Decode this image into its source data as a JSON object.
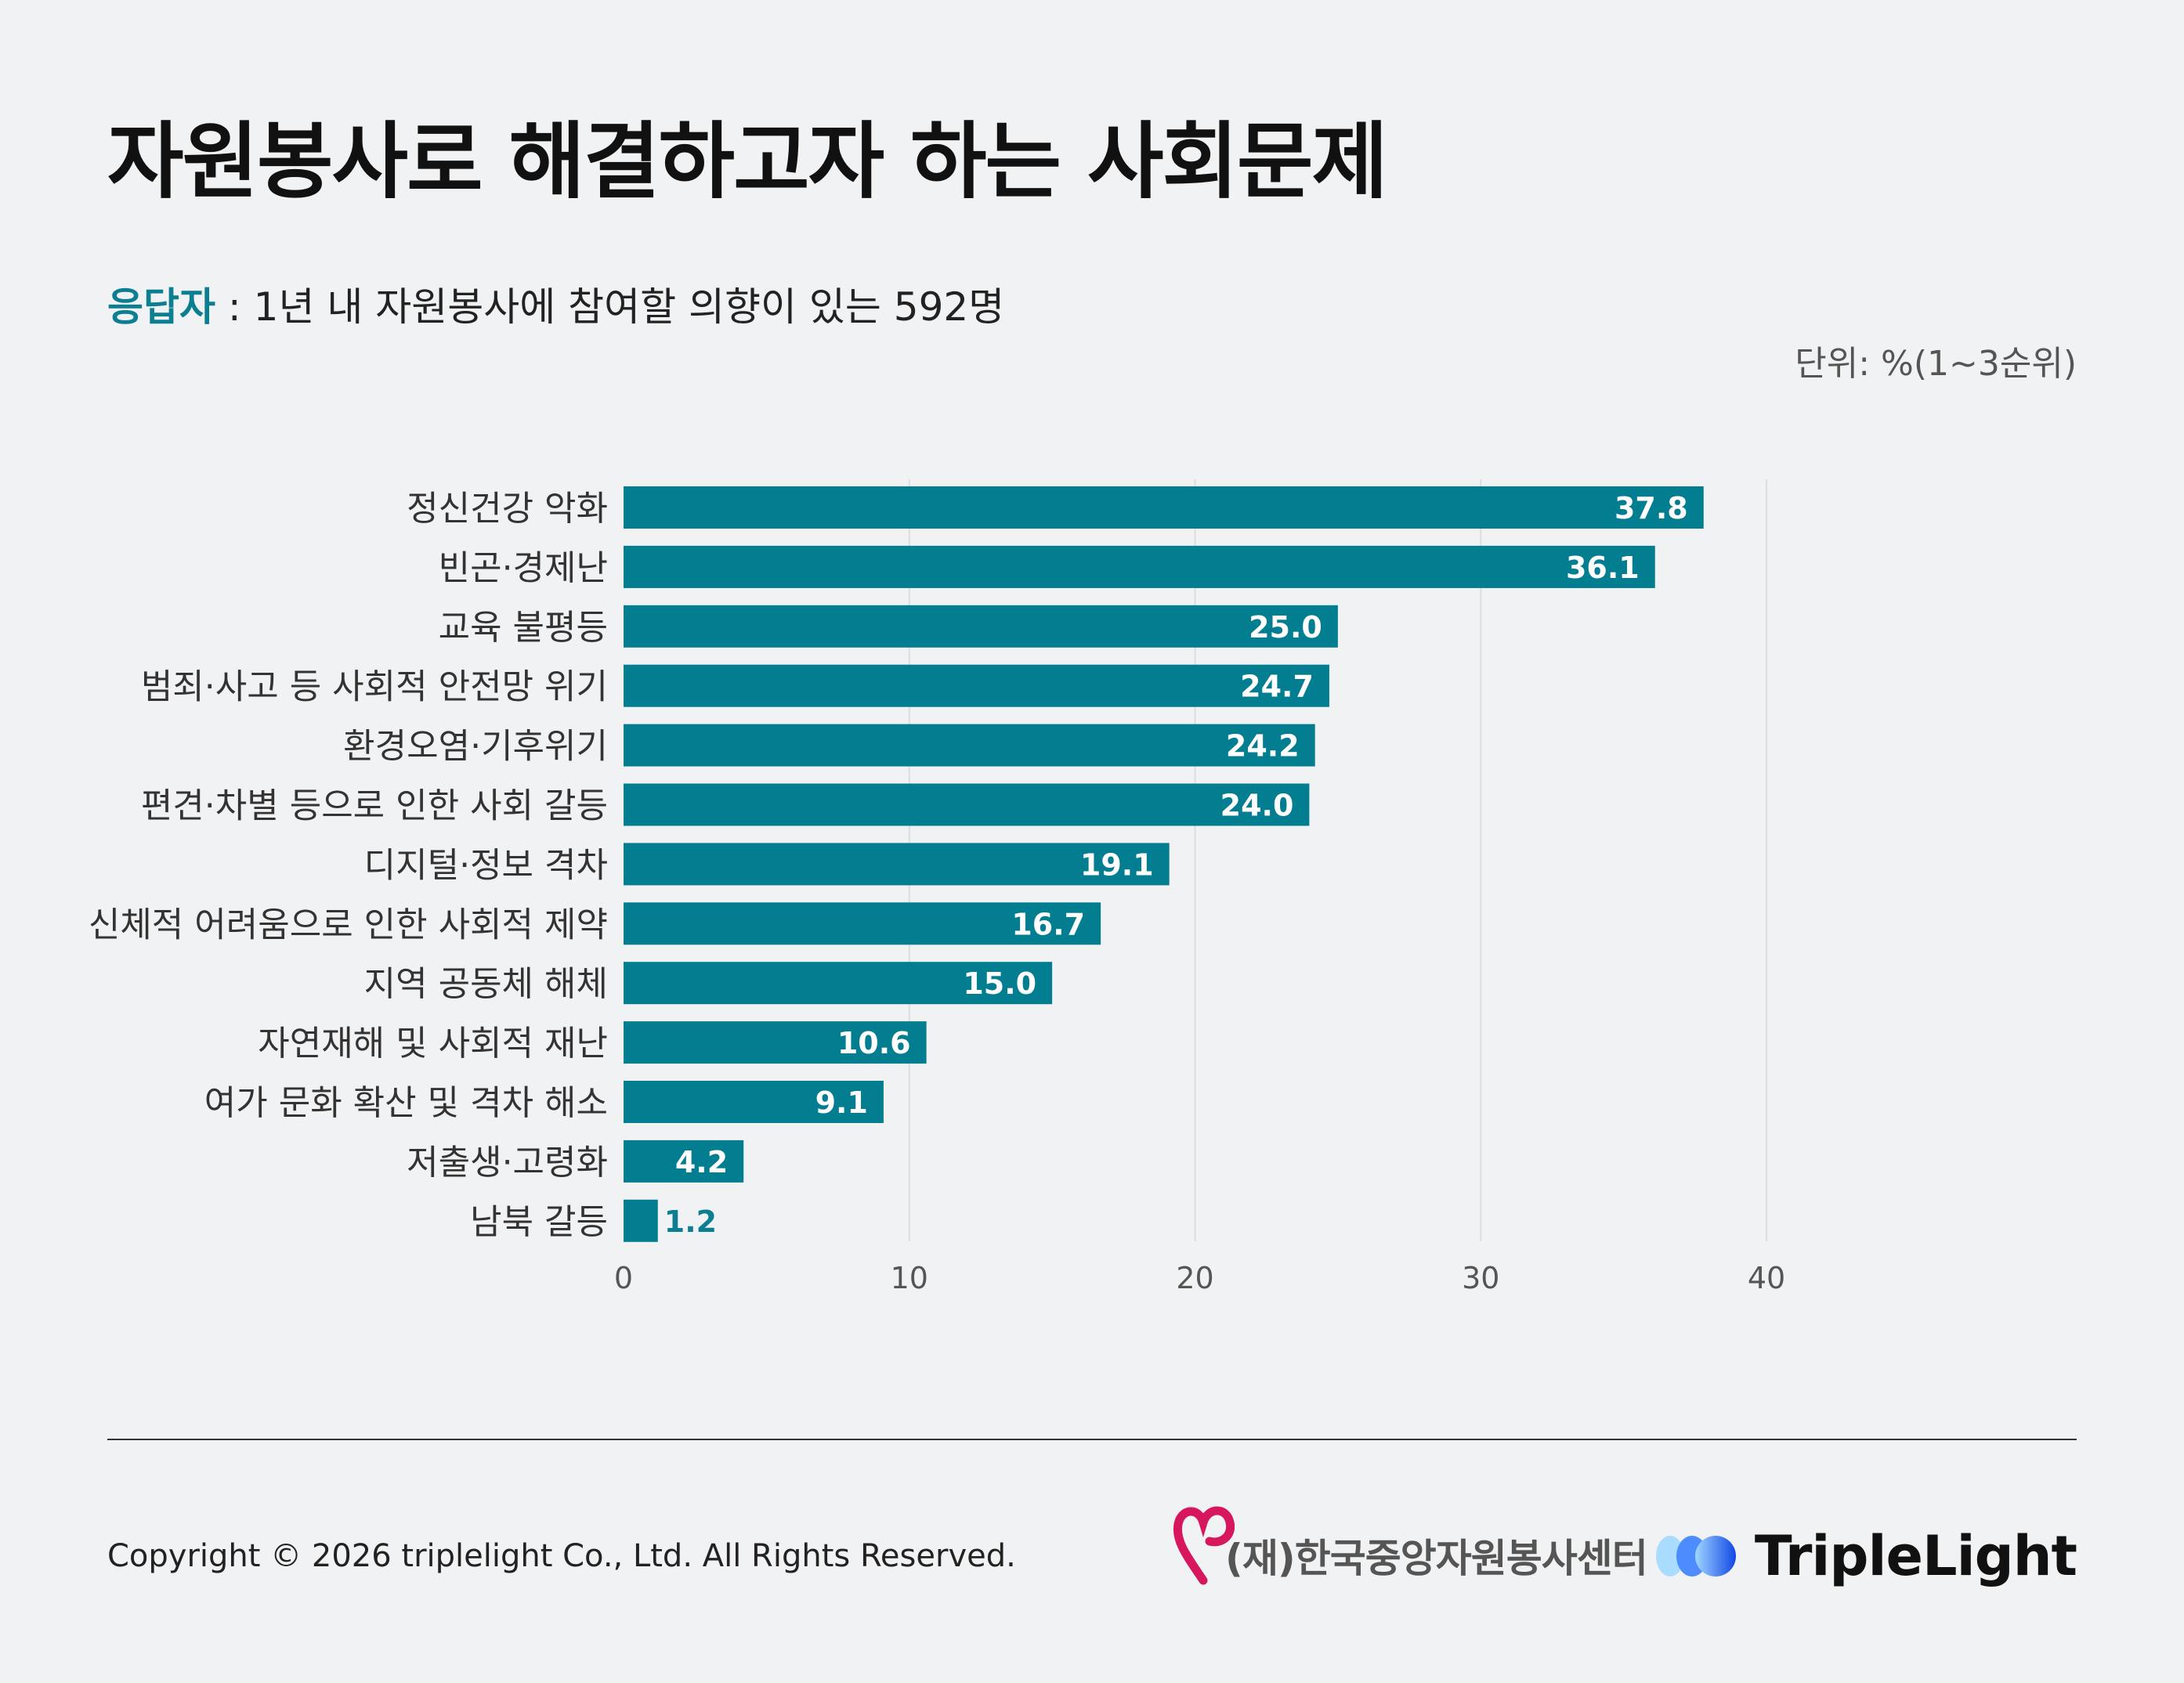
{
  "title": "자원봉사로 해결하고자 하는 사회문제",
  "respondent_label": "응답자",
  "respondent_text": " : 1년 내 자원봉사에 참여할 의향이 있는 592명",
  "unit": "단위: %(1~3순위)",
  "colors": {
    "accent": "#0b7f91",
    "bar": "#037d90",
    "background": "#f1f2f4",
    "grid": "#dcdde0"
  },
  "chart_data": {
    "type": "bar",
    "orientation": "horizontal",
    "categories": [
      "정신건강 악화",
      "빈곤·경제난",
      "교육 불평등",
      "범죄·사고 등 사회적 안전망 위기",
      "환경오염·기후위기",
      "편견·차별 등으로 인한 사회 갈등",
      "디지털·정보 격차",
      "신체적 어려움으로 인한 사회적 제약",
      "지역 공동체 해체",
      "자연재해 및 사회적 재난",
      "여가 문화 확산 및 격차 해소",
      "저출생·고령화",
      "남북 갈등"
    ],
    "values": [
      37.8,
      36.1,
      25.0,
      24.7,
      24.2,
      24.0,
      19.1,
      16.7,
      15.0,
      10.6,
      9.1,
      4.2,
      1.2
    ],
    "value_labels": [
      "37.8",
      "36.1",
      "25.0",
      "24.7",
      "24.2",
      "24.0",
      "19.1",
      "16.7",
      "15.0",
      "10.6",
      "9.1",
      "4.2",
      "1.2"
    ],
    "xlim": [
      0,
      40
    ],
    "xticks": [
      0,
      10,
      20,
      30,
      40
    ],
    "xtick_labels": [
      "0",
      "10",
      "20",
      "30",
      "40"
    ],
    "grid": true,
    "legend": "none"
  },
  "footer": {
    "copyright": "Copyright © 2026 triplelight Co., Ltd. All Rights Reserved.",
    "kvc_logo_text": "(재)한국중앙자원봉사센터",
    "tl_logo_text": "TripleLight"
  }
}
